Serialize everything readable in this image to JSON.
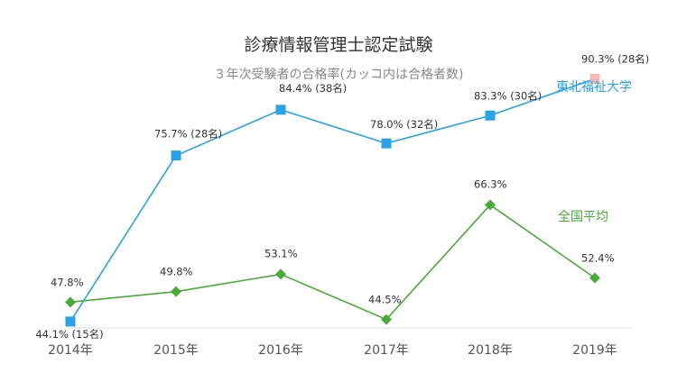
{
  "chart_data": {
    "type": "line",
    "title": "診療情報管理士認定試験",
    "subtitle": "３年次受験者の合格率(カッコ内は合格者数)",
    "categories": [
      "2014年",
      "2015年",
      "2016年",
      "2017年",
      "2018年",
      "2019年"
    ],
    "ylim": [
      35,
      95
    ],
    "grid": false,
    "series": [
      {
        "name": "東北福祉大学",
        "color": "#29a3e6",
        "values": [
          44.1,
          75.7,
          84.4,
          78.0,
          83.3,
          90.3
        ],
        "labels": [
          "44.1% (15名)",
          "75.7% (28名)",
          "84.4% (38名)",
          "78.0% (32名)",
          "83.3% (30名)",
          "90.3% (28名)"
        ],
        "marker": "square",
        "highlight_last_color": "#f7b9b3"
      },
      {
        "name": "全国平均",
        "color": "#4aaa3a",
        "values": [
          47.8,
          49.8,
          53.1,
          44.5,
          66.3,
          52.4
        ],
        "labels": [
          "47.8%",
          "49.8%",
          "53.1%",
          "44.5%",
          "66.3%",
          "52.4%"
        ],
        "marker": "diamond"
      }
    ]
  }
}
